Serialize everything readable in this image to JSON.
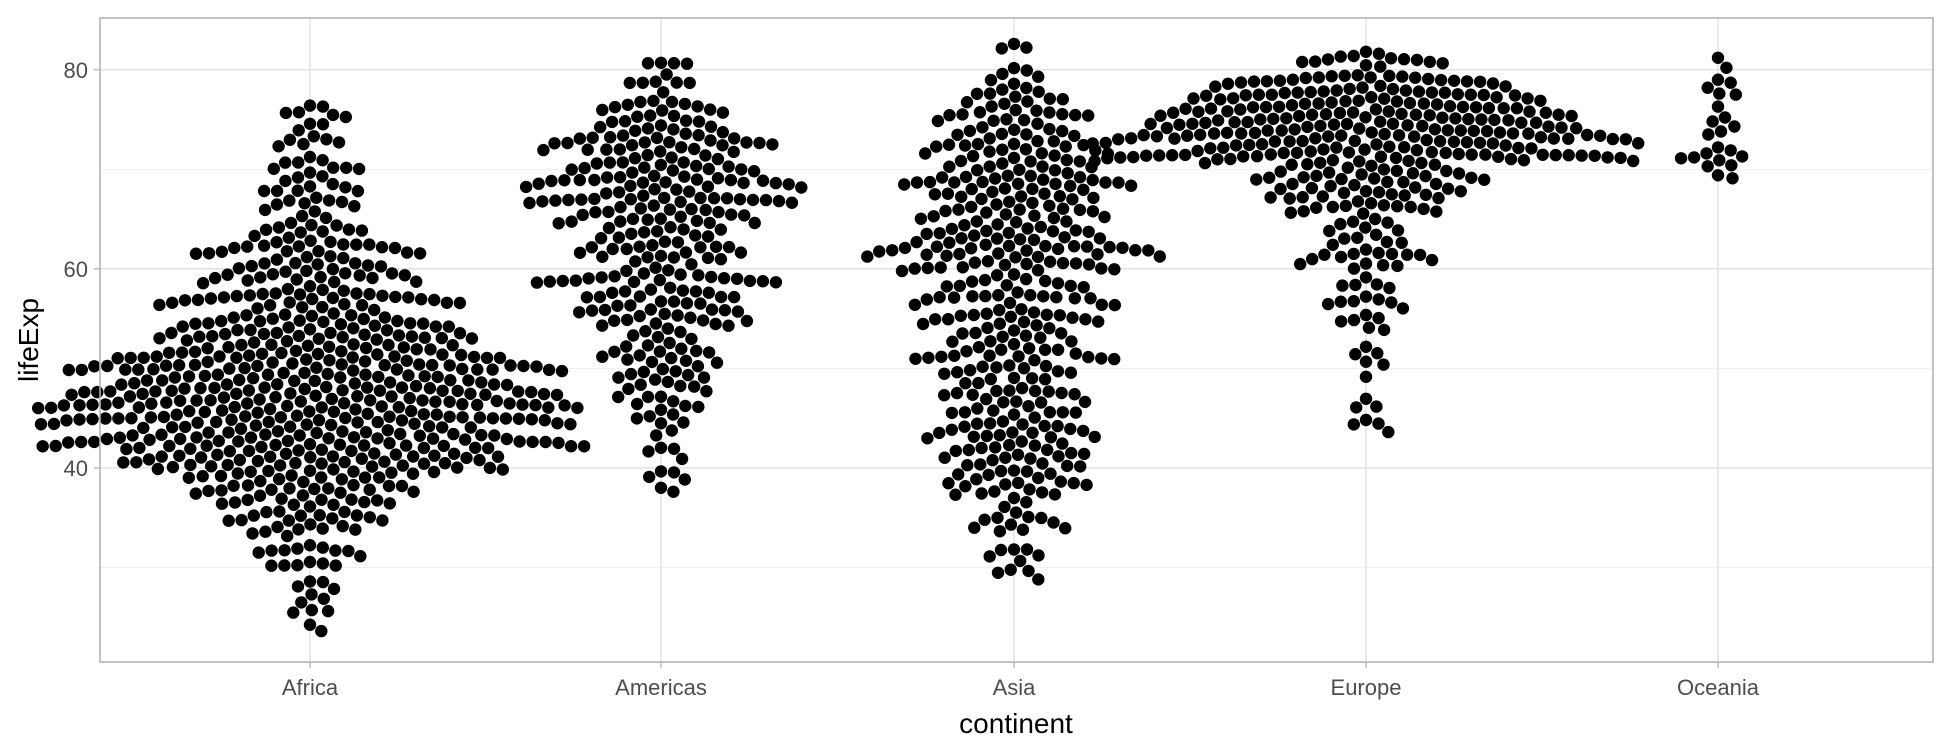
{
  "chart_data": {
    "type": "scatter",
    "subtype": "beeswarm",
    "title": "",
    "xlabel": "continent",
    "ylabel": "lifeExp",
    "ylim": [
      20.5,
      85.2
    ],
    "yticks": [
      40,
      60,
      80
    ],
    "categories": [
      "Africa",
      "Americas",
      "Asia",
      "Europe",
      "Oceania"
    ],
    "grid": true,
    "legend": "none",
    "point_color": "#000000",
    "series": [
      {
        "category": "Africa",
        "point_count": 624,
        "min": 23.6,
        "max": 76.4,
        "center": 47.0,
        "density_profile": [
          [
            23.6,
            1
          ],
          [
            30,
            3
          ],
          [
            33,
            6
          ],
          [
            36,
            12
          ],
          [
            39,
            17
          ],
          [
            42,
            21
          ],
          [
            45,
            23
          ],
          [
            48,
            22
          ],
          [
            51,
            19
          ],
          [
            54,
            15
          ],
          [
            57,
            12
          ],
          [
            60,
            9
          ],
          [
            63,
            6
          ],
          [
            66,
            4
          ],
          [
            70,
            3
          ],
          [
            73,
            3
          ],
          [
            76.4,
            1
          ]
        ]
      },
      {
        "category": "Americas",
        "point_count": 300,
        "min": 37.6,
        "max": 80.7,
        "center": 67.0,
        "density_profile": [
          [
            37.6,
            1
          ],
          [
            41,
            3
          ],
          [
            45,
            4
          ],
          [
            49,
            5
          ],
          [
            53,
            6
          ],
          [
            56,
            7
          ],
          [
            59,
            9
          ],
          [
            62,
            10
          ],
          [
            65,
            12
          ],
          [
            68,
            14
          ],
          [
            70,
            16
          ],
          [
            72,
            14
          ],
          [
            75,
            11
          ],
          [
            78,
            6
          ],
          [
            80.7,
            2
          ]
        ]
      },
      {
        "category": "Asia",
        "point_count": 396,
        "min": 28.8,
        "max": 82.6,
        "center": 61.0,
        "density_profile": [
          [
            28.8,
            1
          ],
          [
            32,
            3
          ],
          [
            36,
            5
          ],
          [
            40,
            8
          ],
          [
            44,
            9
          ],
          [
            48,
            10
          ],
          [
            52,
            10
          ],
          [
            56,
            11
          ],
          [
            60,
            12
          ],
          [
            64,
            13
          ],
          [
            67,
            14
          ],
          [
            70,
            15
          ],
          [
            73,
            12
          ],
          [
            76,
            8
          ],
          [
            79,
            5
          ],
          [
            82.6,
            2
          ]
        ]
      },
      {
        "category": "Europe",
        "point_count": 360,
        "min": 43.6,
        "max": 81.8,
        "center": 73.0,
        "density_profile": [
          [
            43.6,
            1
          ],
          [
            48,
            1
          ],
          [
            52,
            1
          ],
          [
            55,
            2
          ],
          [
            58,
            2
          ],
          [
            61,
            3
          ],
          [
            64,
            4
          ],
          [
            67,
            8
          ],
          [
            69,
            12
          ],
          [
            71,
            24
          ],
          [
            73,
            24
          ],
          [
            75,
            22
          ],
          [
            77,
            18
          ],
          [
            79,
            12
          ],
          [
            81.8,
            4
          ]
        ]
      },
      {
        "category": "Oceania",
        "point_count": 24,
        "min": 69.1,
        "max": 81.2,
        "values": [
          69.1,
          69.4,
          70.3,
          70.4,
          70.9,
          71.1,
          71.2,
          71.3,
          71.6,
          71.9,
          72.2,
          73.5,
          73.8,
          74.3,
          74.8,
          75.2,
          76.3,
          77.5,
          77.6,
          78.2,
          78.7,
          79.0,
          80.2,
          81.2
        ]
      }
    ]
  }
}
